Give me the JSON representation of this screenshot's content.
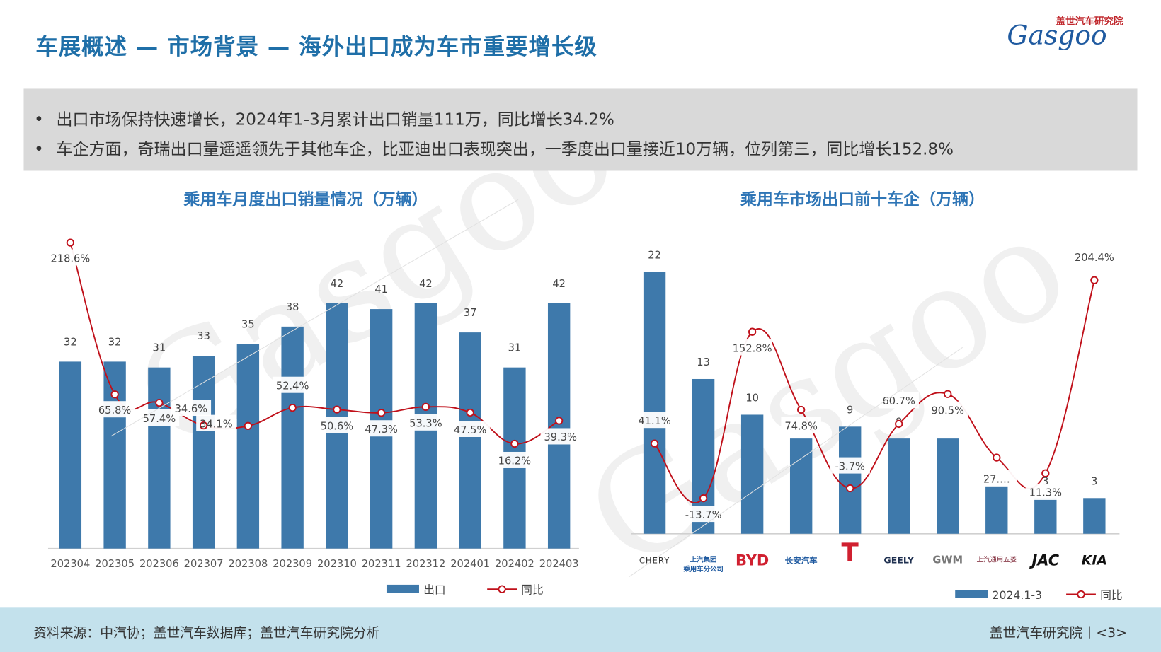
{
  "header": {
    "title": "车展概述 — 市场背景 — 海外出口成为车市重要增长级",
    "logo_cn": "盖世汽车研究院",
    "logo_en": "Gasgoo"
  },
  "summary": {
    "bullets": [
      "出口市场保持快速增长，2024年1-3月累计出口销量111万，同比增长34.2%",
      "车企方面，奇瑞出口量遥遥领先于其他车企，比亚迪出口表现突出，一季度出口量接近10万辆，位列第三，同比增长152.8%"
    ],
    "bullet_mark": "•"
  },
  "watermark": "Gasgoo",
  "colors": {
    "bar": "#3e79ab",
    "line": "#c0101a",
    "title": "#1f6fa8",
    "footer": "#c3e1ec"
  },
  "chart_data": [
    {
      "type": "bar+line",
      "title": "乘用车月度出口销量情况（万辆）",
      "categories": [
        "202304",
        "202305",
        "202306",
        "202307",
        "202308",
        "202309",
        "202310",
        "202311",
        "202312",
        "202401",
        "202402",
        "202403"
      ],
      "series": [
        {
          "name": "出口",
          "type": "bar",
          "values": [
            32,
            32,
            31,
            33,
            35,
            38,
            42,
            41,
            42,
            37,
            31,
            42
          ],
          "labels": [
            "32",
            "32",
            "31",
            "33",
            "35",
            "38",
            "42",
            "41",
            "42",
            "37",
            "31",
            "42"
          ]
        },
        {
          "name": "同比",
          "type": "line",
          "values": [
            218.6,
            65.8,
            57.4,
            34.6,
            34.1,
            52.4,
            50.6,
            47.3,
            53.3,
            47.5,
            16.2,
            39.3
          ],
          "labels": [
            "218.6%",
            "65.8%",
            "57.4%",
            "34.6%",
            "34.1%",
            "52.4%",
            "50.6%",
            "47.3%",
            "53.3%",
            "47.5%",
            "16.2%",
            "39.3%"
          ]
        }
      ],
      "legend": {
        "position": "bottom",
        "items": [
          "出口",
          "同比"
        ]
      },
      "grid": false
    },
    {
      "type": "bar+line",
      "title": "乘用车市场出口前十车企（万辆）",
      "categories": [
        "CHERY",
        "上汽集团乘用车分公司",
        "BYD",
        "长安汽车",
        "TESLA",
        "GEELY",
        "GREAT WALL",
        "上汽通用五菱",
        "JAC",
        "KIA"
      ],
      "brand_lines": [
        [
          "CHERY"
        ],
        [
          "上汽集团",
          "乘用车分公司"
        ],
        [
          "BYD"
        ],
        [
          "长安汽车"
        ],
        [
          "T"
        ],
        [
          "GEELY"
        ],
        [
          "GWM"
        ],
        [
          "上汽通用五菱"
        ],
        [
          "JAC"
        ],
        [
          "KIA"
        ]
      ],
      "series": [
        {
          "name": "2024.1-3",
          "type": "bar",
          "values": [
            22,
            13,
            10,
            8,
            9,
            8,
            8,
            4,
            3,
            3
          ],
          "labels": [
            "22",
            "13",
            "10",
            "",
            "9",
            "8",
            "",
            "",
            "3",
            "3"
          ]
        },
        {
          "name": "同比",
          "type": "line",
          "values": [
            41.1,
            -13.7,
            152.8,
            74.8,
            -3.7,
            60.7,
            90.5,
            27,
            11.3,
            204.4
          ],
          "labels": [
            "41.1%",
            "-13.7%",
            "152.8%",
            "74.8%",
            "-3.7%",
            "60.7%",
            "90.5%",
            "27.…",
            "11.3%",
            "204.4%"
          ]
        }
      ],
      "legend": {
        "position": "bottom-right",
        "items": [
          "2024.1-3",
          "同比"
        ]
      },
      "grid": false
    }
  ],
  "footer": {
    "source": "资料来源：中汽协；盖世汽车数据库；盖世汽车研究院分析",
    "page": "盖世汽车研究院丨<3>"
  }
}
